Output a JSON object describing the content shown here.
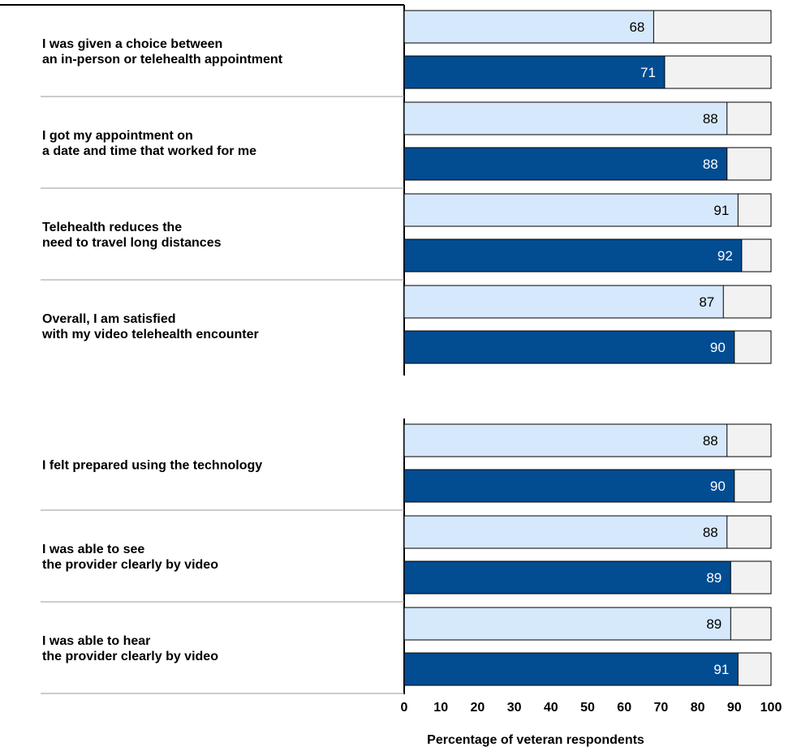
{
  "chart_data": {
    "type": "bar",
    "orientation": "horizontal",
    "xlabel": "Percentage of veteran respondents",
    "xlim": [
      0,
      100
    ],
    "xticks": [
      "0",
      "10",
      "20",
      "30",
      "40",
      "50",
      "60",
      "70",
      "80",
      "90",
      "100"
    ],
    "grid": false,
    "legend": "none",
    "colors": {
      "light": "#d6e8fb",
      "dark": "#024c92",
      "remainder": "#f2f2f2",
      "stroke": "#000000"
    },
    "panels": [
      {
        "items": [
          {
            "lines": [
              "I was given a choice between",
              "an in-person or telehealth appointment"
            ],
            "values": [
              68,
              71
            ]
          },
          {
            "lines": [
              "I got my appointment on",
              "a date and time that worked for me"
            ],
            "values": [
              88,
              88
            ]
          },
          {
            "lines": [
              "Telehealth reduces the",
              "need to travel long distances"
            ],
            "values": [
              91,
              92
            ]
          },
          {
            "lines": [
              "Overall, I am satisfied",
              "with my video telehealth encounter"
            ],
            "values": [
              87,
              90
            ]
          }
        ]
      },
      {
        "items": [
          {
            "lines": [
              "I felt prepared using the technology"
            ],
            "values": [
              88,
              90
            ]
          },
          {
            "lines": [
              "I was able to see",
              "the provider clearly by video"
            ],
            "values": [
              88,
              89
            ]
          },
          {
            "lines": [
              "I was able to hear",
              "the provider clearly by video"
            ],
            "values": [
              89,
              91
            ]
          }
        ]
      }
    ]
  }
}
